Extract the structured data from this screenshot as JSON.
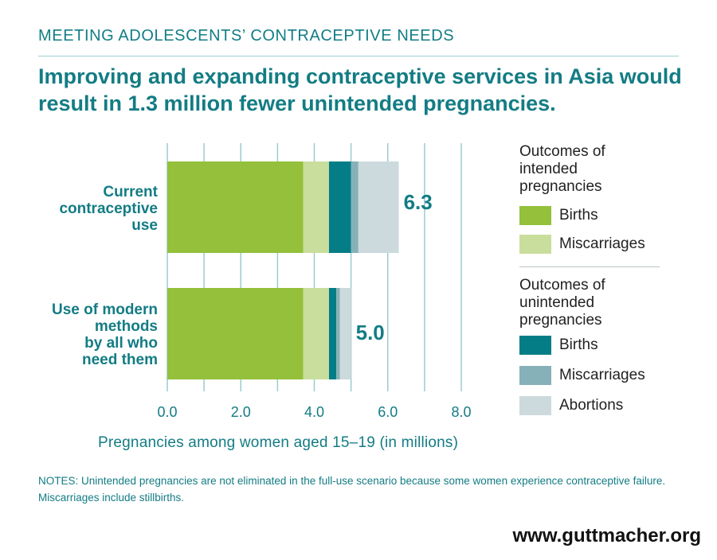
{
  "header": {
    "kicker": "MEETING ADOLESCENTS’ CONTRACEPTIVE NEEDS",
    "headline": "Improving and expanding contraceptive services in Asia would result in 1.3 million fewer unintended pregnancies."
  },
  "chart_data": {
    "type": "bar",
    "orientation": "horizontal",
    "stacked": true,
    "categories": [
      "Current contraceptive use",
      "Use of modern methods by all who need them"
    ],
    "series": [
      {
        "name": "Births",
        "group": "Outcomes of intended pregnancies",
        "color": "#94c03b",
        "values": [
          3.7,
          3.7
        ]
      },
      {
        "name": "Miscarriages",
        "group": "Outcomes of intended pregnancies",
        "color": "#c9de9c",
        "values": [
          0.7,
          0.7
        ]
      },
      {
        "name": "Births",
        "group": "Outcomes of unintended pregnancies",
        "color": "#057d87",
        "values": [
          0.6,
          0.2
        ]
      },
      {
        "name": "Miscarriages",
        "group": "Outcomes of unintended pregnancies",
        "color": "#86b1b8",
        "values": [
          0.2,
          0.1
        ]
      },
      {
        "name": "Abortions",
        "group": "Outcomes of unintended pregnancies",
        "color": "#ccdadd",
        "values": [
          1.1,
          0.3
        ]
      }
    ],
    "totals": [
      "6.3",
      "5.0"
    ],
    "xlabel": "Pregnancies among women aged 15–19 (in millions)",
    "xlim": [
      0,
      8
    ],
    "xticks": [
      "0.0",
      "2.0",
      "4.0",
      "6.0",
      "8.0"
    ],
    "xtick_values": [
      0,
      2,
      4,
      6,
      8
    ],
    "grid": true,
    "legend": {
      "placement": "right",
      "groups": [
        {
          "title": "Outcomes of intended pregnancies",
          "items": [
            {
              "label": "Births",
              "color": "#94c03b"
            },
            {
              "label": "Miscarriages",
              "color": "#c9de9c"
            }
          ]
        },
        {
          "title": "Outcomes of unintended pregnancies",
          "items": [
            {
              "label": "Births",
              "color": "#057d87"
            },
            {
              "label": "Miscarriages",
              "color": "#86b1b8"
            },
            {
              "label": "Abortions",
              "color": "#ccdadd"
            }
          ]
        }
      ]
    }
  },
  "chart_labels": {
    "cat0_lines": [
      "Current",
      "contraceptive",
      "use"
    ],
    "cat1_lines": [
      "Use of modern",
      "methods",
      "by all who",
      "need them"
    ]
  },
  "legend_titles": {
    "intended": [
      "Outcomes of",
      "intended",
      "pregnancies"
    ],
    "unintended": [
      "Outcomes of",
      "unintended",
      "pregnancies"
    ]
  },
  "footer": {
    "notes": "NOTES: Unintended pregnancies are not eliminated in the full-use scenario because some women experience contraceptive failure. Miscarriages include stillbirths.",
    "url": "www.guttmacher.org"
  }
}
